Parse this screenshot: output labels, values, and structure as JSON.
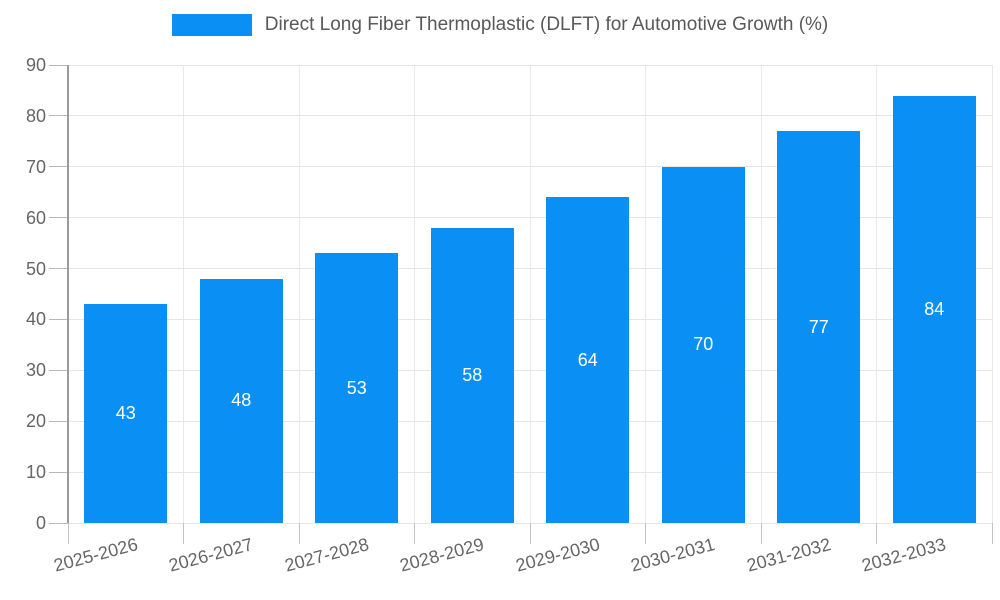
{
  "chart_data": {
    "type": "bar",
    "title": "Direct Long Fiber Thermoplastic (DLFT) for Automotive Growth (%)",
    "categories": [
      "2025-2026",
      "2026-2027",
      "2027-2028",
      "2028-2029",
      "2029-2030",
      "2030-2031",
      "2031-2032",
      "2032-2033"
    ],
    "values": [
      43,
      48,
      53,
      58,
      64,
      70,
      77,
      84
    ],
    "xlabel": "",
    "ylabel": "",
    "ylim": [
      0,
      90
    ],
    "ytick_step": 10,
    "ytick_labels": [
      "0",
      "10",
      "20",
      "30",
      "40",
      "50",
      "60",
      "70",
      "80",
      "90"
    ],
    "grid": "on",
    "legend_position": "top",
    "colors": {
      "bar": "#0a90f5",
      "value_label": "#ffffff",
      "axis_text": "#666666",
      "legend_text": "#595959",
      "gridline": "#e6e6e6",
      "axis_line": "#9a9a9a"
    }
  }
}
